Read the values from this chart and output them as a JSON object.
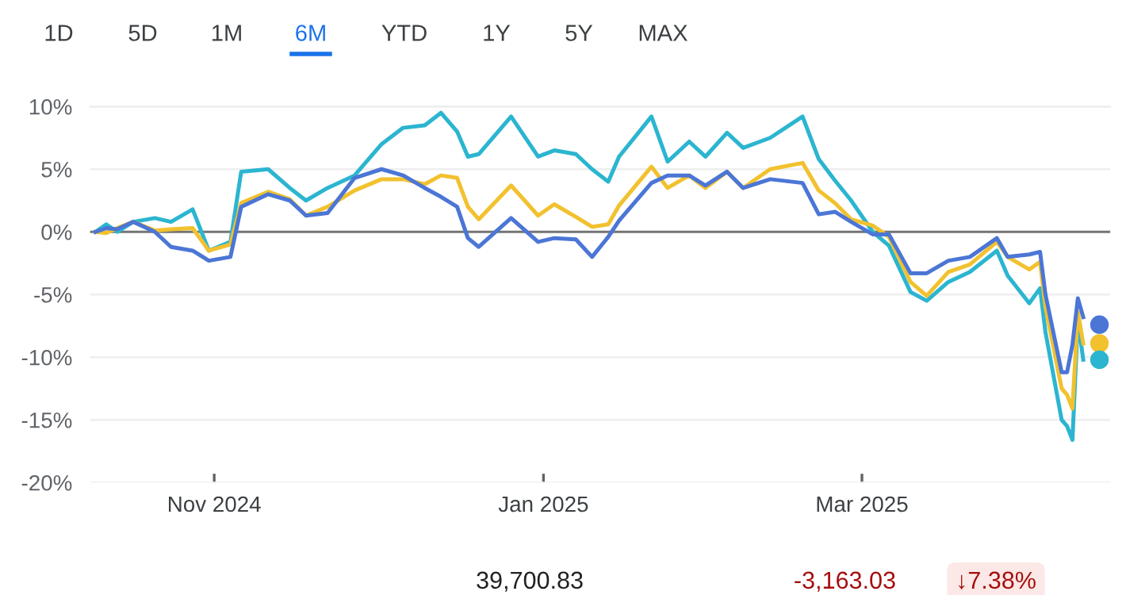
{
  "chart_data": {
    "type": "line",
    "x": [
      "2024-10-10",
      "2024-10-12",
      "2024-10-14",
      "2024-10-17",
      "2024-10-21",
      "2024-10-24",
      "2024-10-28",
      "2024-10-31",
      "2024-11-04",
      "2024-11-06",
      "2024-11-11",
      "2024-11-15",
      "2024-11-18",
      "2024-11-22",
      "2024-11-27",
      "2024-12-02",
      "2024-12-06",
      "2024-12-10",
      "2024-12-13",
      "2024-12-16",
      "2024-12-18",
      "2024-12-20",
      "2024-12-26",
      "2024-12-31",
      "2025-01-03",
      "2025-01-07",
      "2025-01-10",
      "2025-01-13",
      "2025-01-15",
      "2025-01-21",
      "2025-01-24",
      "2025-01-28",
      "2025-01-31",
      "2025-02-04",
      "2025-02-07",
      "2025-02-12",
      "2025-02-18",
      "2025-02-21",
      "2025-02-24",
      "2025-02-27",
      "2025-03-03",
      "2025-03-06",
      "2025-03-10",
      "2025-03-13",
      "2025-03-17",
      "2025-03-21",
      "2025-03-26",
      "2025-03-28",
      "2025-04-01",
      "2025-04-03",
      "2025-04-04",
      "2025-04-07",
      "2025-04-08",
      "2025-04-09",
      "2025-04-10",
      "2025-04-11"
    ],
    "series": [
      {
        "color": "#2bb5d0",
        "values": [
          0,
          0.6,
          0.0,
          0.8,
          1.1,
          0.8,
          1.8,
          -1.5,
          -0.8,
          4.8,
          5.0,
          3.5,
          2.5,
          3.5,
          4.5,
          7.0,
          8.3,
          8.5,
          9.5,
          8.0,
          6.0,
          6.2,
          9.2,
          6.0,
          6.5,
          6.2,
          5.0,
          4.0,
          6.0,
          9.2,
          5.6,
          7.2,
          6.0,
          7.9,
          6.7,
          7.5,
          9.2,
          5.8,
          4.1,
          2.5,
          0.0,
          -1.1,
          -4.8,
          -5.5,
          -4.0,
          -3.2,
          -1.5,
          -3.5,
          -5.7,
          -4.5,
          -8.0,
          -15.0,
          -15.5,
          -16.6,
          -7.0,
          -10.2
        ]
      },
      {
        "color": "#f2c12e",
        "values": [
          0,
          -0.1,
          0.3,
          0.8,
          0.1,
          0.2,
          0.3,
          -1.5,
          -1.0,
          2.3,
          3.2,
          2.6,
          1.3,
          2.0,
          3.3,
          4.2,
          4.2,
          3.8,
          4.5,
          4.3,
          2.0,
          1.0,
          3.7,
          1.3,
          2.2,
          1.2,
          0.4,
          0.6,
          2.1,
          5.2,
          3.5,
          4.5,
          3.5,
          4.8,
          3.5,
          5.0,
          5.5,
          3.3,
          2.3,
          1.0,
          0.5,
          -0.4,
          -4.0,
          -5.1,
          -3.2,
          -2.6,
          -0.8,
          -2.0,
          -3.0,
          -2.4,
          -6.0,
          -12.5,
          -13.0,
          -14.1,
          -6.4,
          -8.9
        ]
      },
      {
        "color": "#4b76d6",
        "values": [
          0,
          0.3,
          0.2,
          0.8,
          0.0,
          -1.2,
          -1.5,
          -2.3,
          -2.0,
          2.0,
          3.0,
          2.5,
          1.3,
          1.5,
          4.3,
          5.0,
          4.5,
          3.5,
          2.8,
          2.0,
          -0.5,
          -1.2,
          1.1,
          -0.8,
          -0.5,
          -0.6,
          -2.0,
          -0.4,
          0.9,
          3.9,
          4.5,
          4.5,
          3.7,
          4.8,
          3.5,
          4.2,
          3.9,
          1.4,
          1.6,
          0.8,
          -0.2,
          -0.2,
          -3.3,
          -3.3,
          -2.3,
          -2.0,
          -0.5,
          -2.0,
          -1.8,
          -1.6,
          -5.0,
          -11.2,
          -11.2,
          -9.0,
          -5.3,
          -6.8
        ]
      },
      {
        "type": "scatter",
        "x": [
          "2025-04-14"
        ],
        "color": "#4b76d6",
        "values": [
          -7.4
        ]
      },
      {
        "type": "scatter",
        "x": [
          "2025-04-14"
        ],
        "color": "#f2c12e",
        "values": [
          -8.9
        ]
      },
      {
        "type": "scatter",
        "x": [
          "2025-04-14"
        ],
        "color": "#2bb5d0",
        "values": [
          -10.2
        ]
      }
    ],
    "xlim": [
      "2024-10-09",
      "2025-04-16"
    ],
    "xticks": [
      {
        "value": "2024-11-01",
        "label": "Nov 2024"
      },
      {
        "value": "2025-01-01",
        "label": "Jan 2025"
      },
      {
        "value": "2025-03-01",
        "label": "Mar 2025"
      }
    ],
    "ylim": [
      -20,
      10
    ],
    "yticks": [
      {
        "value": -20,
        "label": "-20%"
      },
      {
        "value": -15,
        "label": "-15%"
      },
      {
        "value": -10,
        "label": "-10%"
      },
      {
        "value": -5,
        "label": "-5%"
      },
      {
        "value": 0,
        "label": "0%"
      },
      {
        "value": 5,
        "label": "5%"
      },
      {
        "value": 10,
        "label": "10%"
      }
    ],
    "grid": "y",
    "ref_lines": [
      {
        "axis": "y",
        "value": 0,
        "color": "#757575"
      }
    ],
    "annotations": [
      "1D",
      "5D",
      "1M",
      "6M",
      "YTD",
      "1Y",
      "5Y",
      "MAX",
      "39,700.83",
      "-3,163.03",
      "↓7.38%"
    ]
  }
}
